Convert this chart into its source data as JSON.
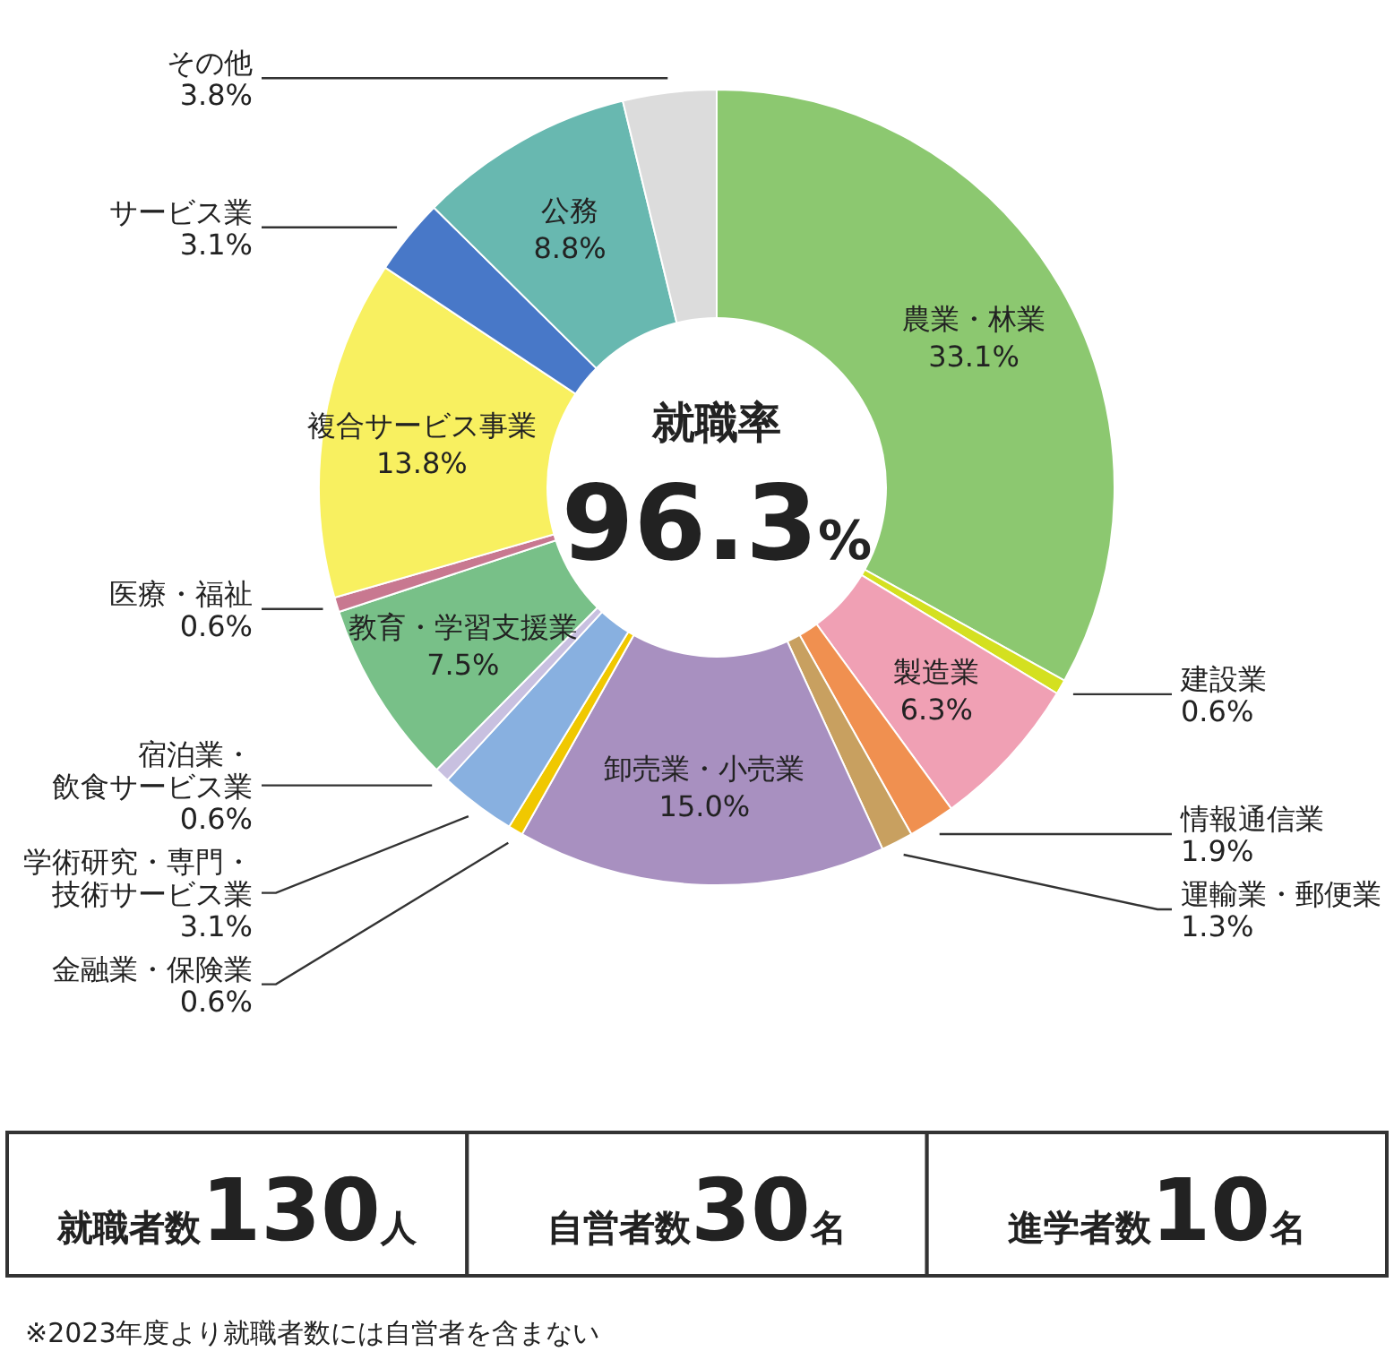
{
  "chart_data": {
    "type": "donut",
    "categories": [
      "農業・林業",
      "建設業",
      "製造業",
      "情報通信業",
      "運輸業・郵便業",
      "卸売業・小売業",
      "金融業・保険業",
      "学術研究・専門・技術サービス業",
      "宿泊業・飲食サービス業",
      "教育・学習支援業",
      "医療・福祉",
      "複合サービス事業",
      "サービス業",
      "公務",
      "その他"
    ],
    "values": [
      33.1,
      0.6,
      6.3,
      1.9,
      1.3,
      15.0,
      0.6,
      3.1,
      0.6,
      7.5,
      0.6,
      13.8,
      3.1,
      8.8,
      3.8
    ],
    "colors": [
      "#8cc870",
      "#d4e020",
      "#f0a0b4",
      "#f09050",
      "#c8a060",
      "#a890c0",
      "#f0c800",
      "#88b0e0",
      "#c8c0e0",
      "#78c088",
      "#c87890",
      "#f8f060",
      "#4878c8",
      "#68b8b0",
      "#dcdcdc"
    ],
    "value_labels": [
      "33.1%",
      "0.6%",
      "6.3%",
      "1.9%",
      "1.3%",
      "15.0%",
      "0.6%",
      "3.1%",
      "0.6%",
      "7.5%",
      "0.6%",
      "13.8%",
      "3.1%",
      "8.8%",
      "3.8%"
    ],
    "annotations": [
      "就職率",
      "96.3%",
      "就職者数130人",
      "自営者数30名",
      "進学者数10名",
      "※2023年度より就職者数には自営者を含まない"
    ]
  }
}
